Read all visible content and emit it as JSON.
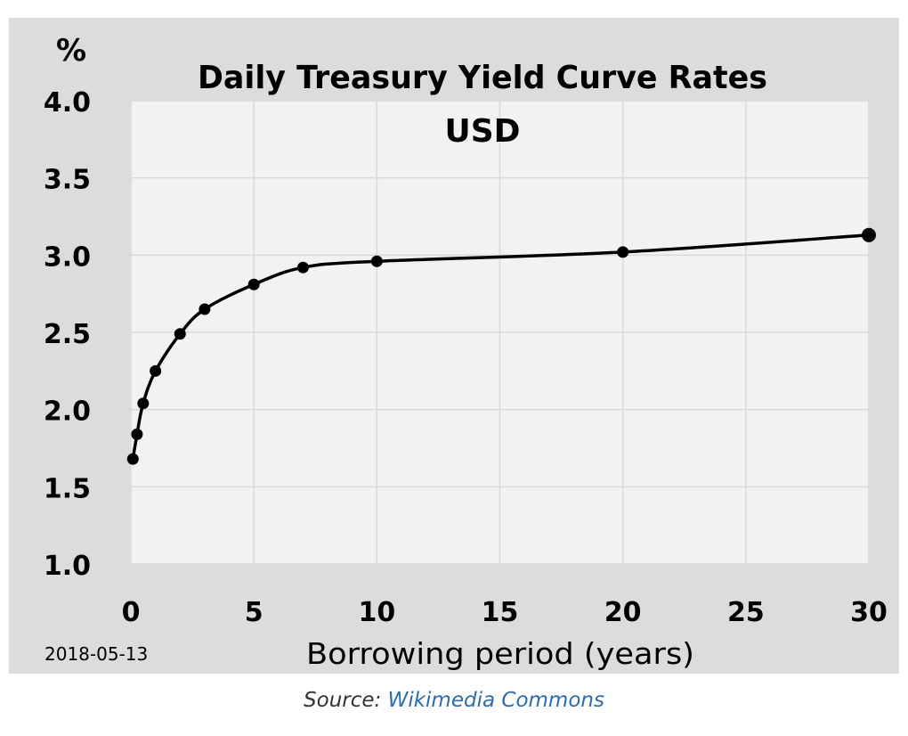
{
  "chart_data": {
    "type": "line",
    "title": "Daily Treasury Yield Curve Rates",
    "subtitle": "USD",
    "xlabel": "Borrowing period (years)",
    "ylabel": "%",
    "date_note": "2018-05-13",
    "xlim": [
      0,
      30
    ],
    "ylim": [
      1.0,
      4.0
    ],
    "x_ticks": [
      "0",
      "5",
      "10",
      "15",
      "20",
      "25",
      "30"
    ],
    "y_ticks": [
      "1.0",
      "1.5",
      "2.0",
      "2.5",
      "3.0",
      "3.5",
      "4.0"
    ],
    "grid": true,
    "series": [
      {
        "x": [
          0.083,
          0.25,
          0.5,
          1,
          2,
          3,
          5,
          7,
          10,
          20,
          30
        ],
        "y": [
          1.68,
          1.84,
          2.04,
          2.25,
          2.49,
          2.65,
          2.81,
          2.92,
          2.96,
          3.02,
          3.13
        ]
      }
    ]
  },
  "colors": {
    "outer_background": "#dcdcdc",
    "plot_background": "#f2f2f2",
    "grid": "#d9d9d9",
    "line": "#000000",
    "link": "#2a6db0",
    "caption_text": "#333333"
  },
  "source": {
    "prefix": "Source:",
    "link_text": "Wikimedia Commons"
  }
}
